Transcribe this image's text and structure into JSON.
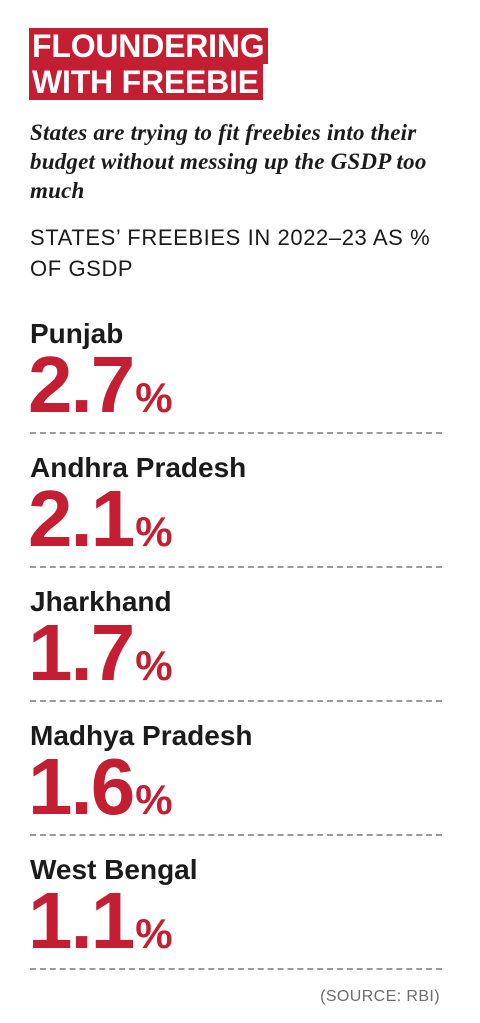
{
  "header": {
    "title_lines": [
      "FLOUNDERING",
      "WITH FREEBIE"
    ],
    "subtitle": "States are trying to fit freebies into their budget without messing up the GSDP too much",
    "chart_label": "STATES’ FREEBIES IN 2022–23 AS % OF GSDP"
  },
  "colors": {
    "accent": "#c41e33",
    "text": "#1b1b1b",
    "divider": "#9a9a9a",
    "muted": "#6d6d6d"
  },
  "chart_data": {
    "type": "table",
    "title": "FLOUNDERING WITH FREEBIE",
    "subtitle": "States are trying to fit freebies into their budget without messing up the GSDP too much",
    "ylabel": "STATES’ FREEBIES IN 2022–23 AS % OF GSDP",
    "unit": "%",
    "categories": [
      "Punjab",
      "Andhra Pradesh",
      "Jharkhand",
      "Madhya Pradesh",
      "West Bengal"
    ],
    "values": [
      2.7,
      2.1,
      1.7,
      1.6,
      1.1
    ],
    "display_values": [
      "2.7",
      "2.1",
      "1.7",
      "1.6",
      "1.1"
    ]
  },
  "footer": {
    "source": "(SOURCE: RBI)"
  }
}
